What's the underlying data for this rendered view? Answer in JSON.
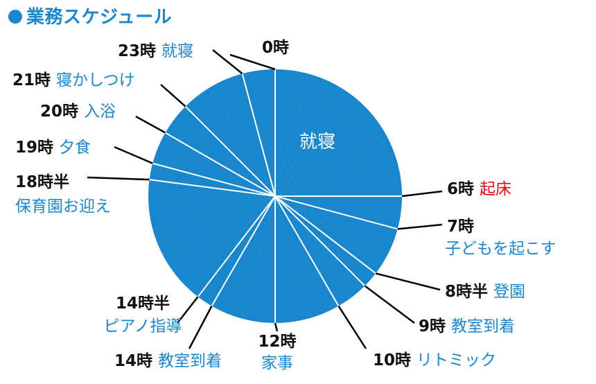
{
  "title": "●業務スケジュール",
  "colors": {
    "pie_fill": "#1a86cc",
    "divider": "#ffffff",
    "time_text": "#111111",
    "activity_text": "#1a86cc",
    "highlight_text": "#e60012"
  },
  "chart_data": {
    "type": "pie",
    "title": "●業務スケジュール",
    "unit": "hours (24-hour clock)",
    "range": [
      0,
      24
    ],
    "boundaries": [
      {
        "hour": 0,
        "time_label": "0時",
        "activity": ""
      },
      {
        "hour": 6,
        "time_label": "6時",
        "activity": "起床",
        "highlight": true
      },
      {
        "hour": 7,
        "time_label": "7時",
        "activity": "子どもを起こす"
      },
      {
        "hour": 8.5,
        "time_label": "8時半",
        "activity": "登園"
      },
      {
        "hour": 9,
        "time_label": "9時",
        "activity": "教室到着"
      },
      {
        "hour": 10,
        "time_label": "10時",
        "activity": "リトミック"
      },
      {
        "hour": 12,
        "time_label": "12時",
        "activity": "家事"
      },
      {
        "hour": 14,
        "time_label": "14時",
        "activity": "教室到着"
      },
      {
        "hour": 14.5,
        "time_label": "14時半",
        "activity": "ピアノ指導"
      },
      {
        "hour": 18.5,
        "time_label": "18時半",
        "activity": "保育園お迎え"
      },
      {
        "hour": 19,
        "time_label": "19時",
        "activity": "夕食"
      },
      {
        "hour": 20,
        "time_label": "20時",
        "activity": "入浴"
      },
      {
        "hour": 21,
        "time_label": "21時",
        "activity": "寝かしつけ"
      },
      {
        "hour": 23,
        "time_label": "23時",
        "activity": "就寝"
      }
    ],
    "inner_label": "就寝"
  }
}
